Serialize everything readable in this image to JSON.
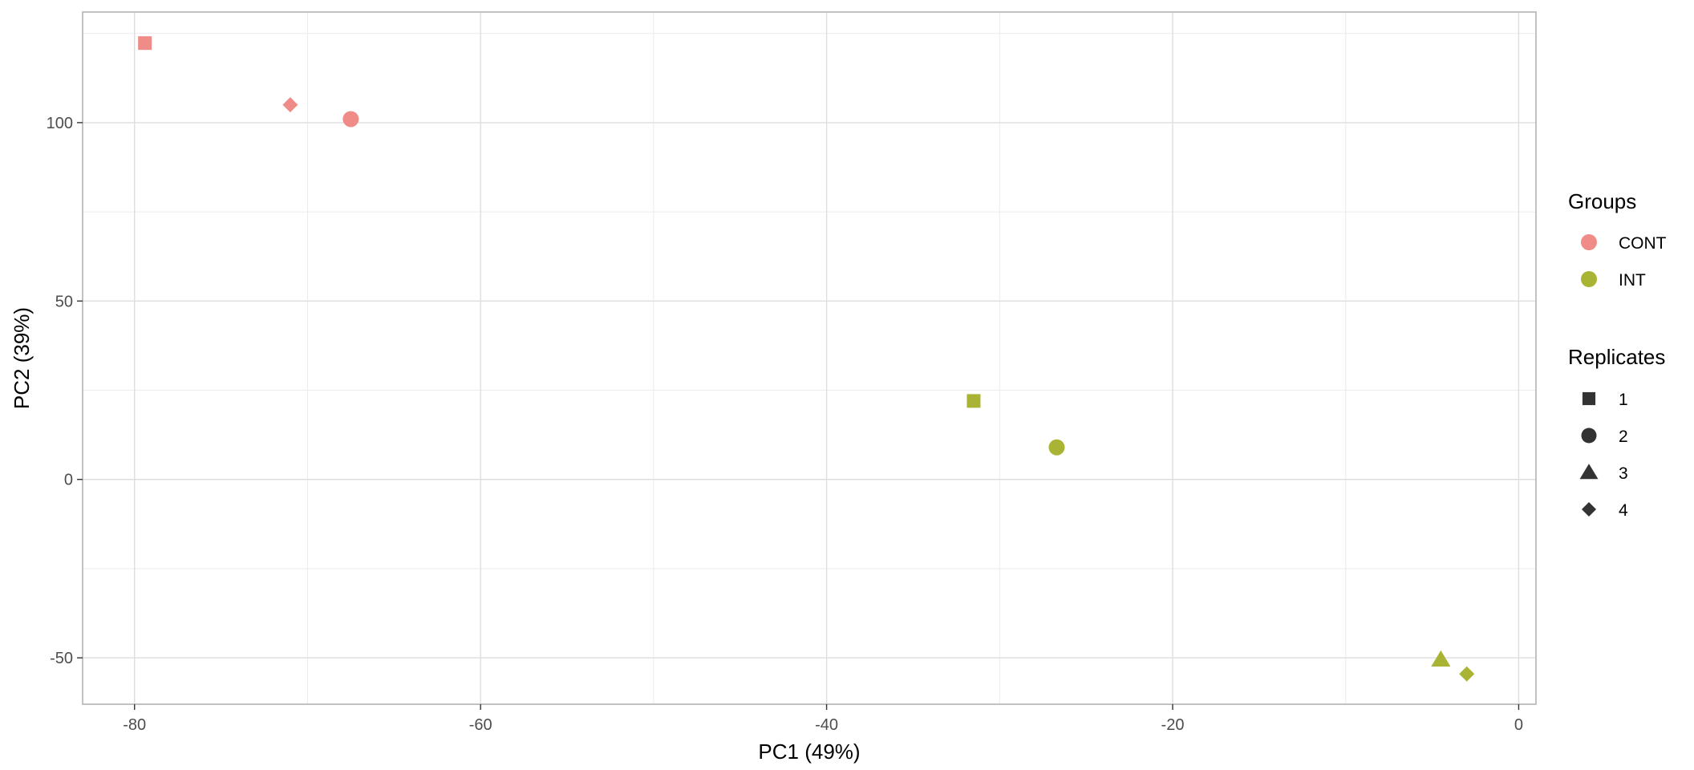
{
  "chart_data": {
    "type": "scatter",
    "title": "",
    "xlabel": "PC1 (49%)",
    "ylabel": "PC2 (39%)",
    "xlim": [
      -83,
      1
    ],
    "ylim": [
      -63,
      131
    ],
    "xticks": [
      -80,
      -60,
      -40,
      -20,
      0
    ],
    "yticks": [
      -50,
      0,
      50,
      100
    ],
    "grid": true,
    "legend_placement": "right",
    "color_legend": {
      "title": "Groups",
      "entries": [
        {
          "label": "CONT",
          "color": "#F08C87"
        },
        {
          "label": "INT",
          "color": "#AAB434"
        }
      ]
    },
    "shape_legend": {
      "title": "Replicates",
      "entries": [
        {
          "label": "1",
          "shape": "square"
        },
        {
          "label": "2",
          "shape": "circle"
        },
        {
          "label": "3",
          "shape": "triangle"
        },
        {
          "label": "4",
          "shape": "diamond"
        }
      ]
    },
    "points": [
      {
        "group": "CONT",
        "replicate": "1",
        "x": -79.4,
        "y": 122.3
      },
      {
        "group": "CONT",
        "replicate": "4",
        "x": -71.0,
        "y": 105.0
      },
      {
        "group": "CONT",
        "replicate": "2",
        "x": -67.5,
        "y": 101.0
      },
      {
        "group": "INT",
        "replicate": "1",
        "x": -31.5,
        "y": 22.0
      },
      {
        "group": "INT",
        "replicate": "2",
        "x": -26.7,
        "y": 9.0
      },
      {
        "group": "INT",
        "replicate": "3",
        "x": -4.5,
        "y": -50.5
      },
      {
        "group": "INT",
        "replicate": "4",
        "x": -3.0,
        "y": -54.5
      }
    ]
  }
}
